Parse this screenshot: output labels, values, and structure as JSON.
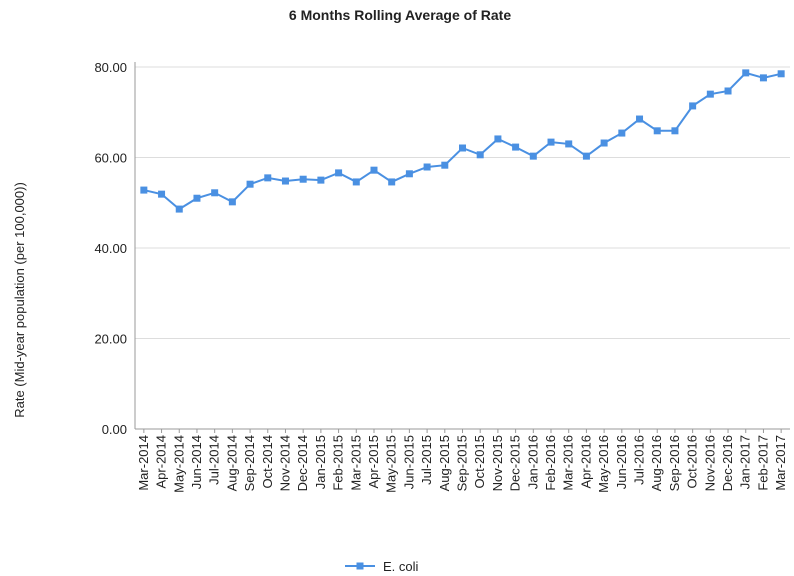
{
  "chart_data": {
    "type": "line",
    "title": "6 Months Rolling Average of Rate",
    "y_label": "Rate (Mid-year population (per 100,000))",
    "categories": [
      "Mar-2014",
      "Apr-2014",
      "May-2014",
      "Jun-2014",
      "Jul-2014",
      "Aug-2014",
      "Sep-2014",
      "Oct-2014",
      "Nov-2014",
      "Dec-2014",
      "Jan-2015",
      "Feb-2015",
      "Mar-2015",
      "Apr-2015",
      "May-2015",
      "Jun-2015",
      "Jul-2015",
      "Aug-2015",
      "Sep-2015",
      "Oct-2015",
      "Nov-2015",
      "Dec-2015",
      "Jan-2016",
      "Feb-2016",
      "Mar-2016",
      "Apr-2016",
      "May-2016",
      "Jun-2016",
      "Jul-2016",
      "Aug-2016",
      "Sep-2016",
      "Oct-2016",
      "Nov-2016",
      "Dec-2016",
      "Jan-2017",
      "Feb-2017",
      "Mar-2017"
    ],
    "series": [
      {
        "name": "E. coli",
        "color": "#4a90e2",
        "values": [
          52.8,
          51.9,
          48.6,
          51.0,
          52.2,
          50.2,
          54.1,
          55.5,
          54.8,
          55.2,
          55.0,
          56.6,
          54.6,
          57.2,
          54.6,
          56.4,
          57.9,
          58.3,
          62.1,
          60.6,
          64.1,
          62.3,
          60.3,
          63.4,
          63.0,
          60.3,
          63.2,
          65.4,
          68.5,
          65.9,
          65.9,
          71.4,
          74.0,
          74.7,
          78.7,
          77.6,
          78.5
        ]
      }
    ],
    "ylim": [
      0,
      80
    ],
    "yticks": [
      {
        "value": 0,
        "label": "0.00"
      },
      {
        "value": 20,
        "label": "20.00"
      },
      {
        "value": 40,
        "label": "40.00"
      },
      {
        "value": 60,
        "label": "60.00"
      },
      {
        "value": 80,
        "label": "80.00"
      }
    ],
    "grid": true,
    "legend": "bottom"
  }
}
